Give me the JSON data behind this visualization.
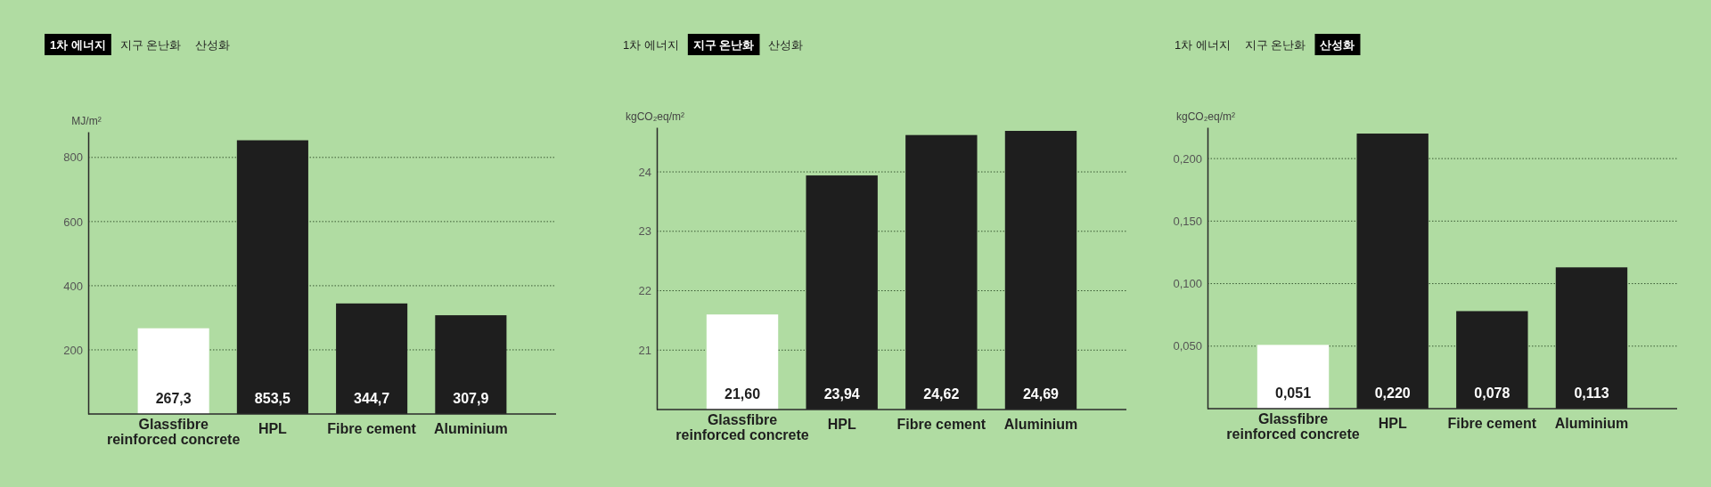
{
  "chart_data": [
    {
      "type": "bar",
      "annotations": [
        "1차 에너지",
        "지구 온난화",
        "산성화"
      ],
      "ylabel": "MJ/m²",
      "categories": [
        "Glassfibre reinforced concrete",
        "HPL",
        "Fibre cement",
        "Aluminium"
      ],
      "values": [
        267.3,
        853.5,
        344.7,
        307.9
      ],
      "colors": [
        "#ffffff",
        "#1e1e1e",
        "#1e1e1e",
        "#1e1e1e"
      ],
      "value_labels": [
        "267,3",
        "853,5",
        "344,7",
        "307,9"
      ],
      "ylim": [
        0,
        880
      ],
      "yticks": [
        200,
        400,
        600,
        800
      ],
      "grid": "y"
    },
    {
      "type": "bar",
      "annotations": [
        "1차 에너지",
        "지구 온난화",
        "산성화"
      ],
      "ylabel": "kgCO₂eq/m²",
      "categories": [
        "Glassfibre reinforced concrete",
        "HPL",
        "Fibre cement",
        "Aluminium"
      ],
      "values": [
        21.6,
        23.94,
        24.62,
        24.69
      ],
      "colors": [
        "#ffffff",
        "#1e1e1e",
        "#1e1e1e",
        "#1e1e1e"
      ],
      "value_labels": [
        "21,60",
        "23,94",
        "24,62",
        "24,69"
      ],
      "ylim": [
        20,
        24.75
      ],
      "yticks": [
        21,
        22,
        23,
        24
      ],
      "grid": "y"
    },
    {
      "type": "bar",
      "annotations": [
        "1차 에너지",
        "지구 온난화",
        "산성화"
      ],
      "ylabel": "kgCO₂eq/m²",
      "categories": [
        "Glassfibre reinforced concrete",
        "HPL",
        "Fibre cement",
        "Aluminium"
      ],
      "values": [
        0.051,
        0.22,
        0.078,
        0.113
      ],
      "colors": [
        "#ffffff",
        "#1e1e1e",
        "#1e1e1e",
        "#1e1e1e"
      ],
      "value_labels": [
        "0,051",
        "0,220",
        "0,078",
        "0,113"
      ],
      "ylim": [
        0,
        0.225
      ],
      "yticks": [
        {
          "value": 0.05,
          "label": "0,050"
        },
        {
          "value": 0.1,
          "label": "0,100"
        },
        {
          "value": 0.15,
          "label": "0,150"
        },
        {
          "value": 0.2,
          "label": "0,200"
        }
      ],
      "grid": "y"
    }
  ]
}
